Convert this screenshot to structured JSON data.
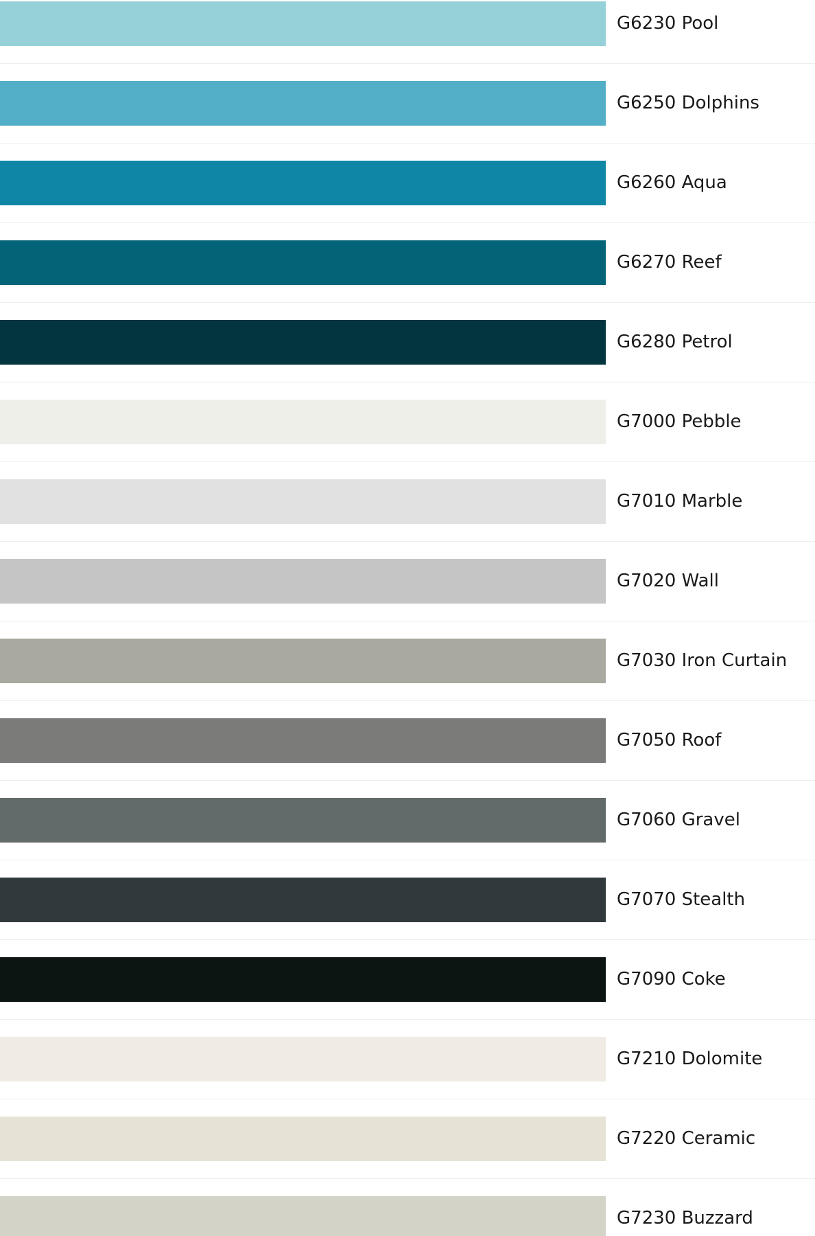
{
  "swatches": [
    {
      "label": "G6230 Pool",
      "color": "#96d1d9"
    },
    {
      "label": "G6250 Dolphins",
      "color": "#53aec7"
    },
    {
      "label": "G6260 Aqua",
      "color": "#0f86a5"
    },
    {
      "label": "G6270 Reef",
      "color": "#036377"
    },
    {
      "label": "G6280 Petrol",
      "color": "#033540"
    },
    {
      "label": "G7000 Pebble",
      "color": "#efefea"
    },
    {
      "label": "G7010 Marble",
      "color": "#e1e1e1"
    },
    {
      "label": "G7020 Wall",
      "color": "#c5c5c5"
    },
    {
      "label": "G7030 Iron Curtain",
      "color": "#a9a9a0"
    },
    {
      "label": "G7050 Roof",
      "color": "#7b7c79"
    },
    {
      "label": "G7060 Gravel",
      "color": "#636b6a"
    },
    {
      "label": "G7070 Stealth",
      "color": "#30393c"
    },
    {
      "label": "G7090 Coke",
      "color": "#0c1512"
    },
    {
      "label": "G7210 Dolomite",
      "color": "#f0ece5"
    },
    {
      "label": "G7220 Ceramic",
      "color": "#e6e2d6"
    },
    {
      "label": "G7230 Buzzard",
      "color": "#d3d3c7"
    }
  ]
}
